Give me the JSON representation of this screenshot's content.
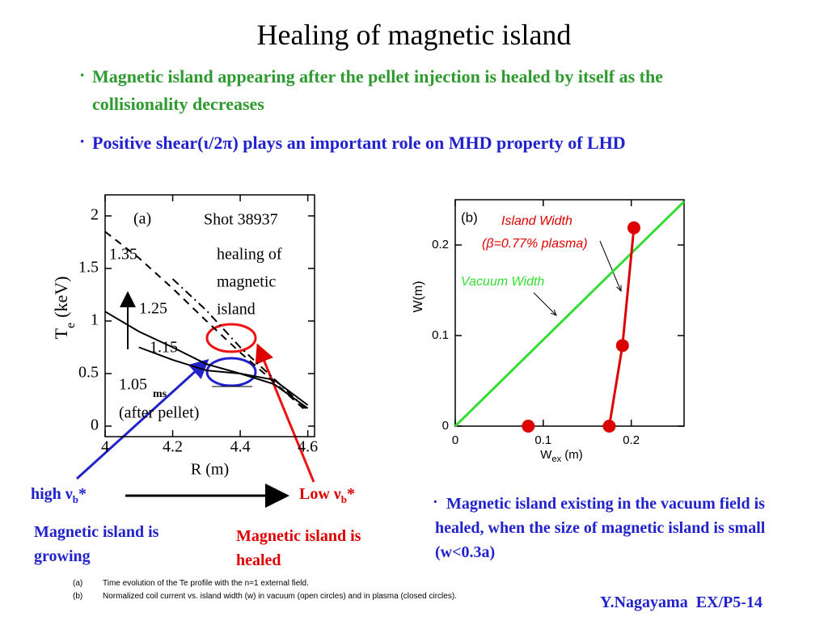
{
  "title": "Healing of magnetic island",
  "bullet_mark": "·",
  "bullets": [
    "Magnetic island appearing after the pellet injection is healed by itself as the collisionality decreases",
    "Positive shear(ι/2π) plays an important role on MHD property of LHD",
    "Magnetic island existing in the vacuum field is healed, when the size of magnetic island is small (w<0.3a)"
  ],
  "collisionality": {
    "high": {
      "text": "high ν",
      "sub": "b",
      "star": "*"
    },
    "low": {
      "text": "Low ν",
      "sub": "b",
      "star": "*"
    }
  },
  "growing_note": "Magnetic island is growing",
  "healed_note": "Magnetic island is healed",
  "footnotes": [
    {
      "tag": "(a)",
      "text": "Time evolution of the Te profile with the n=1 external field."
    },
    {
      "tag": "(b)",
      "text": "Normalized coil current vs. island width (w) in vacuum (open circles) and in plasma (closed circles)."
    }
  ],
  "author": "Y.Nagayama  EX/P5-14",
  "chart_data": [
    {
      "type": "line",
      "x_label": "R (m)",
      "y_label": {
        "main": "T",
        "sub": "e",
        "unit": "(keV)"
      },
      "annotations": [
        "(a)",
        "Shot 38937",
        "healing of",
        "magnetic",
        "island",
        "ms",
        "(after pellet)"
      ],
      "x": [
        4.0,
        4.1,
        4.2,
        4.3,
        4.4,
        4.5,
        4.6
      ],
      "xlim": [
        4,
        4.62
      ],
      "ylim": [
        -0.1,
        2.2
      ],
      "xticks": [
        4,
        4.2,
        4.4,
        4.6
      ],
      "yticks": [
        0,
        0.5,
        1,
        1.5,
        2
      ],
      "series": [
        {
          "name": "1.35",
          "color": "#000000",
          "dash": "dashed",
          "values": [
            1.85,
            1.6,
            1.31,
            1.0,
            0.7,
            0.42,
            0.13
          ]
        },
        {
          "name": "1.25",
          "color": "#000000",
          "dash": "dashdot",
          "values": [
            null,
            null,
            1.4,
            1.1,
            0.75,
            0.45,
            0.15
          ]
        },
        {
          "name": "1.15",
          "color": "#000000",
          "dash": "solid",
          "values": [
            1.09,
            0.9,
            0.75,
            0.59,
            0.5,
            0.44,
            0.2
          ]
        },
        {
          "name": "1.05",
          "color": "#000000",
          "dash": "solid",
          "values": [
            null,
            0.75,
            0.63,
            0.53,
            0.5,
            0.4,
            0.17
          ]
        }
      ]
    },
    {
      "type": "line",
      "x_label": {
        "main": "W",
        "sub": "ex",
        "unit": "(m)"
      },
      "y_label": "W(m)",
      "annotations": [
        "(b)",
        "(β=0.77% plasma)"
      ],
      "xlim": [
        0,
        0.26
      ],
      "ylim": [
        0,
        0.25
      ],
      "xticks": [
        0,
        0.1,
        0.2
      ],
      "yticks": [
        0,
        0.1,
        0.2
      ],
      "series": [
        {
          "name": "Vacuum Width",
          "color": "#33dd33",
          "dash": "solid",
          "markers": false,
          "x": [
            0,
            0.26
          ],
          "values": [
            0,
            0.248
          ]
        },
        {
          "name": "Island Width",
          "color": "#dd0000",
          "dash": "solid",
          "markers": true,
          "x": [
            0.175,
            0.19,
            0.203
          ],
          "values": [
            0,
            0.089,
            0.219
          ]
        },
        {
          "color": "#dd0000",
          "markers": true,
          "line": false,
          "x": [
            0.083
          ],
          "values": [
            0
          ]
        }
      ]
    }
  ]
}
